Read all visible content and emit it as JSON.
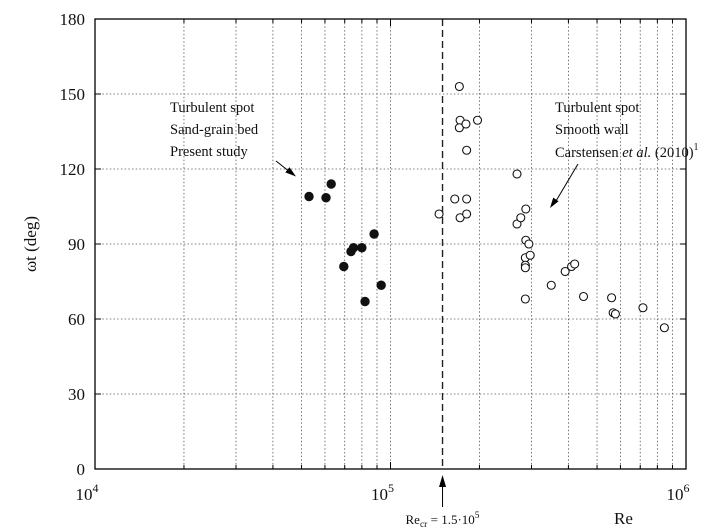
{
  "chart_data": {
    "type": "scatter",
    "xscale": "log",
    "xlim": [
      10000,
      1000000
    ],
    "ylim": [
      0,
      180
    ],
    "xlabel": "Re",
    "ylabel": "ωt  (deg)",
    "yticks": [
      0,
      30,
      60,
      90,
      120,
      150,
      180
    ],
    "xtick_labels": [
      {
        "value": 10000,
        "base": "10",
        "exp": "4"
      },
      {
        "value": 100000,
        "base": "10",
        "exp": "5"
      },
      {
        "value": 1000000,
        "base": "10",
        "exp": "6"
      }
    ],
    "grid": true,
    "critical_re": {
      "value": 150000,
      "label_main": "Re",
      "label_sub": "cr",
      "label_eq": " = 1.5·10",
      "label_exp": "5"
    },
    "series": [
      {
        "marker": "filled-circle",
        "annotation": [
          "Turbulent spot",
          "Sand-grain bed",
          "Present study"
        ],
        "points": [
          [
            53000,
            109
          ],
          [
            60500,
            108.5
          ],
          [
            63000,
            114
          ],
          [
            69500,
            81
          ],
          [
            73500,
            87
          ],
          [
            75000,
            88.5
          ],
          [
            80000,
            88.5
          ],
          [
            82000,
            67
          ],
          [
            88000,
            94
          ],
          [
            93000,
            73.5
          ]
        ]
      },
      {
        "marker": "open-circle",
        "annotation": [
          "Turbulent spot",
          "Smooth wall",
          "Carstensen ",
          "et al.",
          " (2010)",
          "1"
        ],
        "points": [
          [
            146000,
            102
          ],
          [
            165000,
            108
          ],
          [
            171000,
            153
          ],
          [
            172000,
            139.5
          ],
          [
            171000,
            136.5
          ],
          [
            172000,
            100.5
          ],
          [
            180000,
            138
          ],
          [
            181000,
            127.5
          ],
          [
            181000,
            108
          ],
          [
            181000,
            102
          ],
          [
            197000,
            139.5
          ],
          [
            268000,
            118
          ],
          [
            268000,
            98
          ],
          [
            276000,
            100.5
          ],
          [
            287000,
            104
          ],
          [
            287000,
            91.5
          ],
          [
            286000,
            84.5
          ],
          [
            286000,
            81.5
          ],
          [
            286000,
            80.5
          ],
          [
            286000,
            68
          ],
          [
            294000,
            90
          ],
          [
            297000,
            85.5
          ],
          [
            350000,
            73.5
          ],
          [
            390000,
            79
          ],
          [
            410000,
            81
          ],
          [
            420000,
            82
          ],
          [
            450000,
            69
          ],
          [
            560000,
            68.5
          ],
          [
            567000,
            62.5
          ],
          [
            577000,
            62
          ],
          [
            715000,
            64.5
          ],
          [
            845000,
            56.5
          ]
        ]
      }
    ]
  }
}
